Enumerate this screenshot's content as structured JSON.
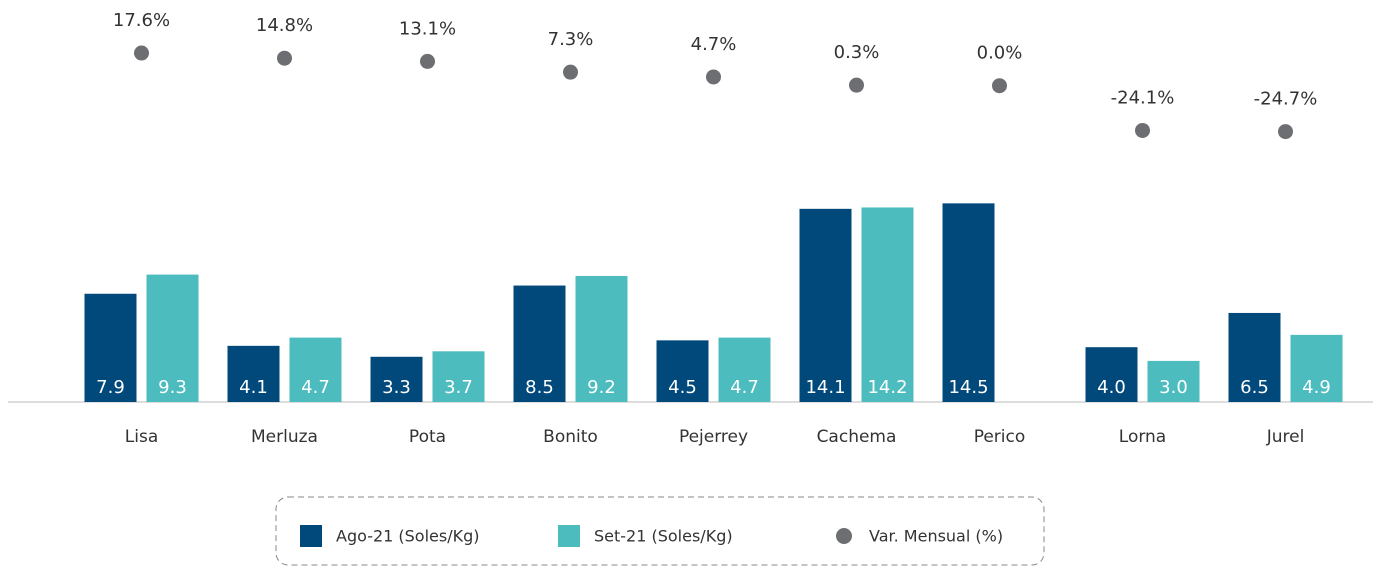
{
  "chart_data": {
    "type": "bar",
    "categories": [
      "Lisa",
      "Merluza",
      "Pota",
      "Bonito",
      "Pejerrey",
      "Cachema",
      "Perico",
      "Lorna",
      "Jurel"
    ],
    "series": [
      {
        "name": "Ago-21 (Soles/Kg)",
        "color": "#00497a",
        "values": [
          7.9,
          4.1,
          3.3,
          8.5,
          4.5,
          14.1,
          14.5,
          4.0,
          6.5
        ],
        "value_labels": [
          "7.9",
          "4.1",
          "3.3",
          "8.5",
          "4.5",
          "14.1",
          "14.5",
          "4.0",
          "6.5"
        ]
      },
      {
        "name": "Set-21 (Soles/Kg)",
        "color": "#4cbcbf",
        "values": [
          9.3,
          4.7,
          3.7,
          9.2,
          4.7,
          14.2,
          null,
          3.0,
          4.9
        ],
        "value_labels": [
          "9.3",
          "4.7",
          "3.7",
          "9.2",
          "4.7",
          "14.2",
          null,
          "3.0",
          "4.9"
        ]
      },
      {
        "name": "Var. Mensual (%)",
        "color": "#6d6e71",
        "type": "scatter",
        "axis": "y2",
        "values": [
          17.6,
          14.8,
          13.1,
          7.3,
          4.7,
          0.3,
          0.0,
          -24.1,
          -24.7
        ],
        "value_labels": [
          "17.6%",
          "14.8%",
          "13.1%",
          "7.3%",
          "4.7%",
          "0.3%",
          "0.0%",
          "-24.1%",
          "-24.7%"
        ]
      }
    ],
    "ylim": [
      0,
      20
    ],
    "y2lim": [
      -40,
      30
    ],
    "legend": "bottom"
  }
}
